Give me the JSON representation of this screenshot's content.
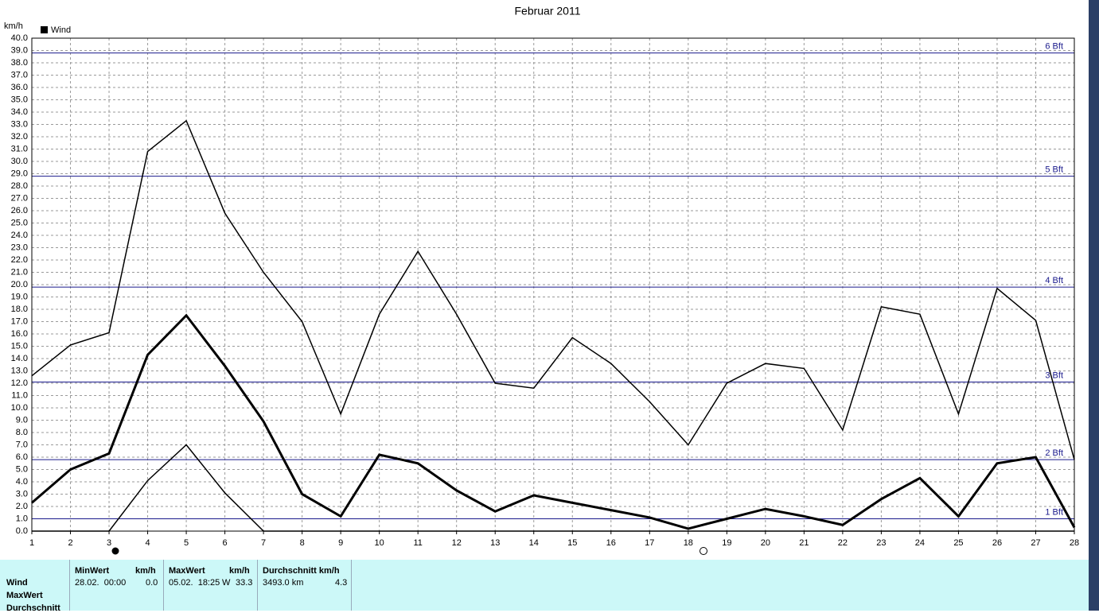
{
  "chart_data": {
    "type": "line",
    "title": "Februar 2011",
    "y_label": "km/h",
    "legend": "Wind",
    "grid": true,
    "x": [
      1,
      2,
      3,
      4,
      5,
      6,
      7,
      8,
      9,
      10,
      11,
      12,
      13,
      14,
      15,
      16,
      17,
      18,
      19,
      20,
      21,
      22,
      23,
      24,
      25,
      26,
      27,
      28
    ],
    "xlim": [
      1,
      28
    ],
    "xticks": [
      1,
      2,
      3,
      4,
      5,
      6,
      7,
      8,
      9,
      10,
      11,
      12,
      13,
      14,
      15,
      16,
      17,
      18,
      19,
      20,
      21,
      22,
      23,
      24,
      25,
      26,
      27,
      28
    ],
    "ylim": [
      0,
      40
    ],
    "yticks": [
      {
        "value": 0,
        "label": "0.0"
      },
      {
        "value": 1,
        "label": "1.0"
      },
      {
        "value": 2,
        "label": "2.0"
      },
      {
        "value": 3,
        "label": "3.0"
      },
      {
        "value": 4,
        "label": "4.0"
      },
      {
        "value": 5,
        "label": "5.0"
      },
      {
        "value": 6,
        "label": "6.0"
      },
      {
        "value": 7,
        "label": "7.0"
      },
      {
        "value": 8,
        "label": "8.0"
      },
      {
        "value": 9,
        "label": "9.0"
      },
      {
        "value": 10,
        "label": "10.0"
      },
      {
        "value": 11,
        "label": "11.0"
      },
      {
        "value": 12,
        "label": "12.0"
      },
      {
        "value": 13,
        "label": "13.0"
      },
      {
        "value": 14,
        "label": "14.0"
      },
      {
        "value": 15,
        "label": "15.0"
      },
      {
        "value": 16,
        "label": "16.0"
      },
      {
        "value": 17,
        "label": "17.0"
      },
      {
        "value": 18,
        "label": "18.0"
      },
      {
        "value": 19,
        "label": "19.0"
      },
      {
        "value": 20,
        "label": "20.0"
      },
      {
        "value": 21,
        "label": "21.0"
      },
      {
        "value": 22,
        "label": "22.0"
      },
      {
        "value": 23,
        "label": "23.0"
      },
      {
        "value": 24,
        "label": "24.0"
      },
      {
        "value": 25,
        "label": "25.0"
      },
      {
        "value": 26,
        "label": "26.0"
      },
      {
        "value": 27,
        "label": "27.0"
      },
      {
        "value": 28,
        "label": "28.0"
      },
      {
        "value": 29,
        "label": "29.0"
      },
      {
        "value": 30,
        "label": "30.0"
      },
      {
        "value": 31,
        "label": "31.0"
      },
      {
        "value": 32,
        "label": "32.0"
      },
      {
        "value": 33,
        "label": "33.0"
      },
      {
        "value": 34,
        "label": "34.0"
      },
      {
        "value": 35,
        "label": "35.0"
      },
      {
        "value": 36,
        "label": "36.0"
      },
      {
        "value": 37,
        "label": "37.0"
      },
      {
        "value": 38,
        "label": "38.0"
      },
      {
        "value": 39,
        "label": "39.0"
      },
      {
        "value": 40,
        "label": "40.0"
      }
    ],
    "series": [
      {
        "color": "#000000",
        "values": [
          12.6,
          15.1,
          16.1,
          30.8,
          33.3,
          25.8,
          21.0,
          17.0,
          9.5,
          17.6,
          22.7,
          17.6,
          12.0,
          11.6,
          15.7,
          13.6,
          10.5,
          7.0,
          12.0,
          13.6,
          13.2,
          8.2,
          18.2,
          17.6,
          9.5,
          19.7,
          17.1,
          5.8
        ]
      },
      {
        "color": "#000000",
        "values": [
          2.3,
          5.0,
          6.3,
          14.3,
          17.5,
          13.4,
          8.9,
          3.0,
          1.2,
          6.2,
          5.5,
          3.3,
          1.6,
          2.9,
          2.3,
          1.7,
          1.1,
          0.2,
          1.0,
          1.8,
          1.2,
          0.5,
          2.6,
          4.3,
          1.2,
          5.5,
          6.0,
          0.3
        ]
      },
      {
        "color": "#000000",
        "values": [
          0,
          0,
          0,
          4.1,
          7.0,
          3.1,
          0,
          0,
          0,
          0,
          0,
          0,
          0,
          0,
          0,
          0,
          0,
          0,
          0,
          0,
          0,
          0,
          0,
          0,
          0,
          0,
          0,
          0
        ]
      }
    ],
    "reference_lines": [
      {
        "value": 38.8,
        "label": "6 Bft"
      },
      {
        "value": 28.8,
        "label": "5 Bft"
      },
      {
        "value": 19.8,
        "label": "4 Bft"
      },
      {
        "value": 12.1,
        "label": "3 Bft"
      },
      {
        "value": 5.8,
        "label": "2 Bft"
      },
      {
        "value": 1.0,
        "label": "1 Bft"
      }
    ]
  },
  "stats": {
    "row_labels": [
      "Wind",
      "MaxWert",
      "Durchschnitt"
    ],
    "min": {
      "header": "MinWert",
      "unit": "km/h",
      "date": "28.02.  00:00",
      "value": "0.0"
    },
    "max": {
      "header": "MaxWert",
      "unit": "km/h",
      "date": "05.02.  18:25",
      "direction": "W",
      "value": "33.3"
    },
    "avg": {
      "header": "Durchschnitt km/h",
      "distance": "3493.0 km",
      "value": "4.3"
    }
  }
}
